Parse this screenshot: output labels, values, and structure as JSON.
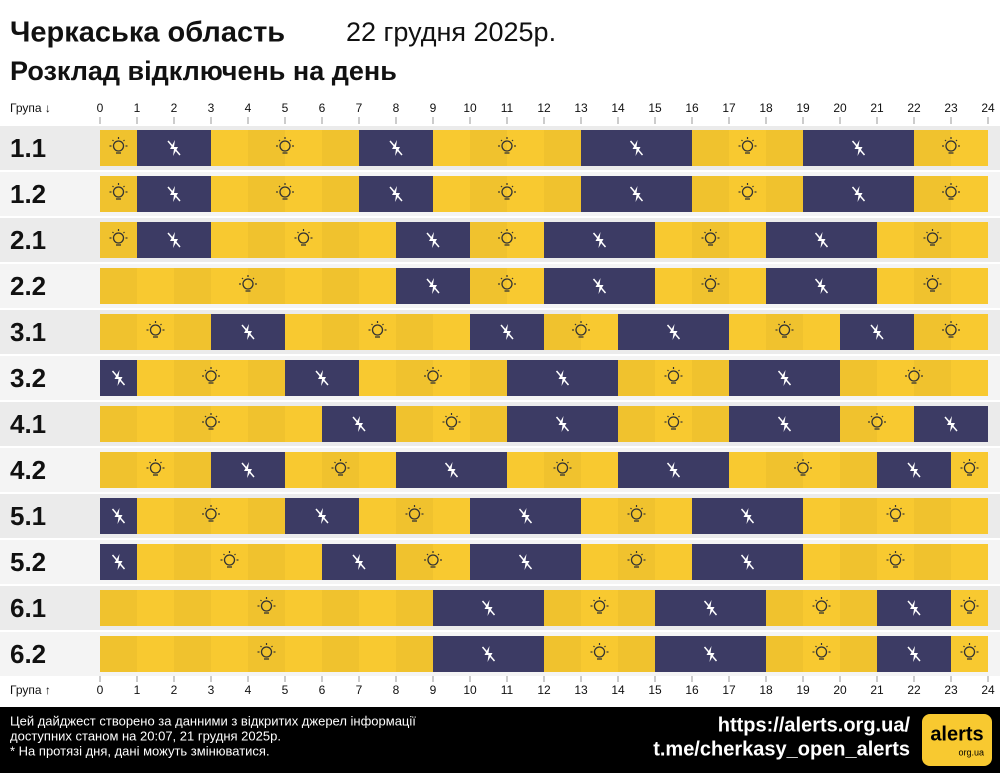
{
  "chart_data": {
    "type": "timeline",
    "title": "Черкаська область",
    "date": "22 грудня 2025р.",
    "subtitle": "Розклад відключень на день",
    "y_label_top": "Група ↓",
    "y_label_bottom": "Група ↑",
    "xlim": [
      0,
      24
    ],
    "xticks": [
      0,
      1,
      2,
      3,
      4,
      5,
      6,
      7,
      8,
      9,
      10,
      11,
      12,
      13,
      14,
      15,
      16,
      17,
      18,
      19,
      20,
      21,
      22,
      23,
      24
    ],
    "on_color": "#f8c930",
    "off_color": "#3c3b64",
    "series": [
      {
        "name": "1.1",
        "outages": [
          [
            1,
            3
          ],
          [
            7,
            9
          ],
          [
            13,
            16
          ],
          [
            19,
            22
          ]
        ]
      },
      {
        "name": "1.2",
        "outages": [
          [
            1,
            3
          ],
          [
            7,
            9
          ],
          [
            13,
            16
          ],
          [
            19,
            22
          ]
        ]
      },
      {
        "name": "2.1",
        "outages": [
          [
            1,
            3
          ],
          [
            8,
            10
          ],
          [
            12,
            15
          ],
          [
            18,
            21
          ]
        ]
      },
      {
        "name": "2.2",
        "outages": [
          [
            8,
            10
          ],
          [
            12,
            15
          ],
          [
            18,
            21
          ]
        ]
      },
      {
        "name": "3.1",
        "outages": [
          [
            3,
            5
          ],
          [
            10,
            12
          ],
          [
            14,
            17
          ],
          [
            20,
            22
          ]
        ]
      },
      {
        "name": "3.2",
        "outages": [
          [
            0,
            1
          ],
          [
            5,
            7
          ],
          [
            11,
            14
          ],
          [
            17,
            20
          ]
        ]
      },
      {
        "name": "4.1",
        "outages": [
          [
            6,
            8
          ],
          [
            11,
            14
          ],
          [
            17,
            20
          ],
          [
            22,
            24
          ]
        ]
      },
      {
        "name": "4.2",
        "outages": [
          [
            3,
            5
          ],
          [
            8,
            11
          ],
          [
            14,
            17
          ],
          [
            21,
            23
          ]
        ]
      },
      {
        "name": "5.1",
        "outages": [
          [
            0,
            1
          ],
          [
            5,
            7
          ],
          [
            10,
            13
          ],
          [
            16,
            19
          ]
        ]
      },
      {
        "name": "5.2",
        "outages": [
          [
            0,
            1
          ],
          [
            6,
            8
          ],
          [
            10,
            13
          ],
          [
            16,
            19
          ]
        ]
      },
      {
        "name": "6.1",
        "outages": [
          [
            9,
            12
          ],
          [
            15,
            18
          ],
          [
            21,
            23
          ]
        ]
      },
      {
        "name": "6.2",
        "outages": [
          [
            9,
            12
          ],
          [
            15,
            18
          ],
          [
            21,
            23
          ]
        ]
      }
    ],
    "footer": {
      "note_lines": [
        "Цей дайджест створено за данними з відкритих джерел інформації",
        "доступних станом на 20:07, 21 грудня 2025р.",
        "* На протязі дня, дані можуть змінюватися."
      ],
      "links": [
        "https://alerts.org.ua/",
        "t.me/cherkasy_open_alerts"
      ],
      "logo": "alerts",
      "logo_sub": "org.ua"
    }
  }
}
